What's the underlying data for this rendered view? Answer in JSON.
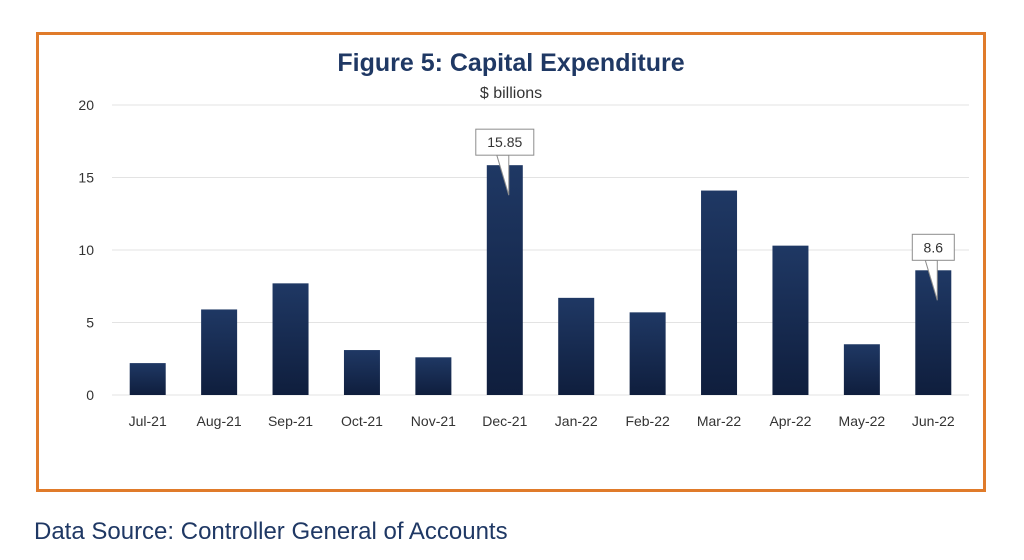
{
  "source_note": "Data Source: Controller General of Accounts",
  "colors": {
    "bar": "#1F3864",
    "bar_dark": "#0F1E3D",
    "frame": "#E07B2A",
    "grid": "#E3E3E3"
  },
  "chart_data": {
    "type": "bar",
    "title": "Figure 5: Capital Expenditure",
    "subtitle": "$ billions",
    "xlabel": "",
    "ylabel": "",
    "categories": [
      "Jul-21",
      "Aug-21",
      "Sep-21",
      "Oct-21",
      "Nov-21",
      "Dec-21",
      "Jan-22",
      "Feb-22",
      "Mar-22",
      "Apr-22",
      "May-22",
      "Jun-22"
    ],
    "values": [
      2.2,
      5.9,
      7.7,
      3.1,
      2.6,
      15.85,
      6.7,
      5.7,
      14.1,
      10.3,
      3.5,
      8.6
    ],
    "ylim": [
      0,
      20
    ],
    "yticks": [
      0,
      5,
      10,
      15,
      20
    ],
    "grid": true,
    "legend": "none",
    "annotations": [
      {
        "category": "Dec-21",
        "label": "15.85"
      },
      {
        "category": "Jun-22",
        "label": "8.6"
      }
    ]
  }
}
